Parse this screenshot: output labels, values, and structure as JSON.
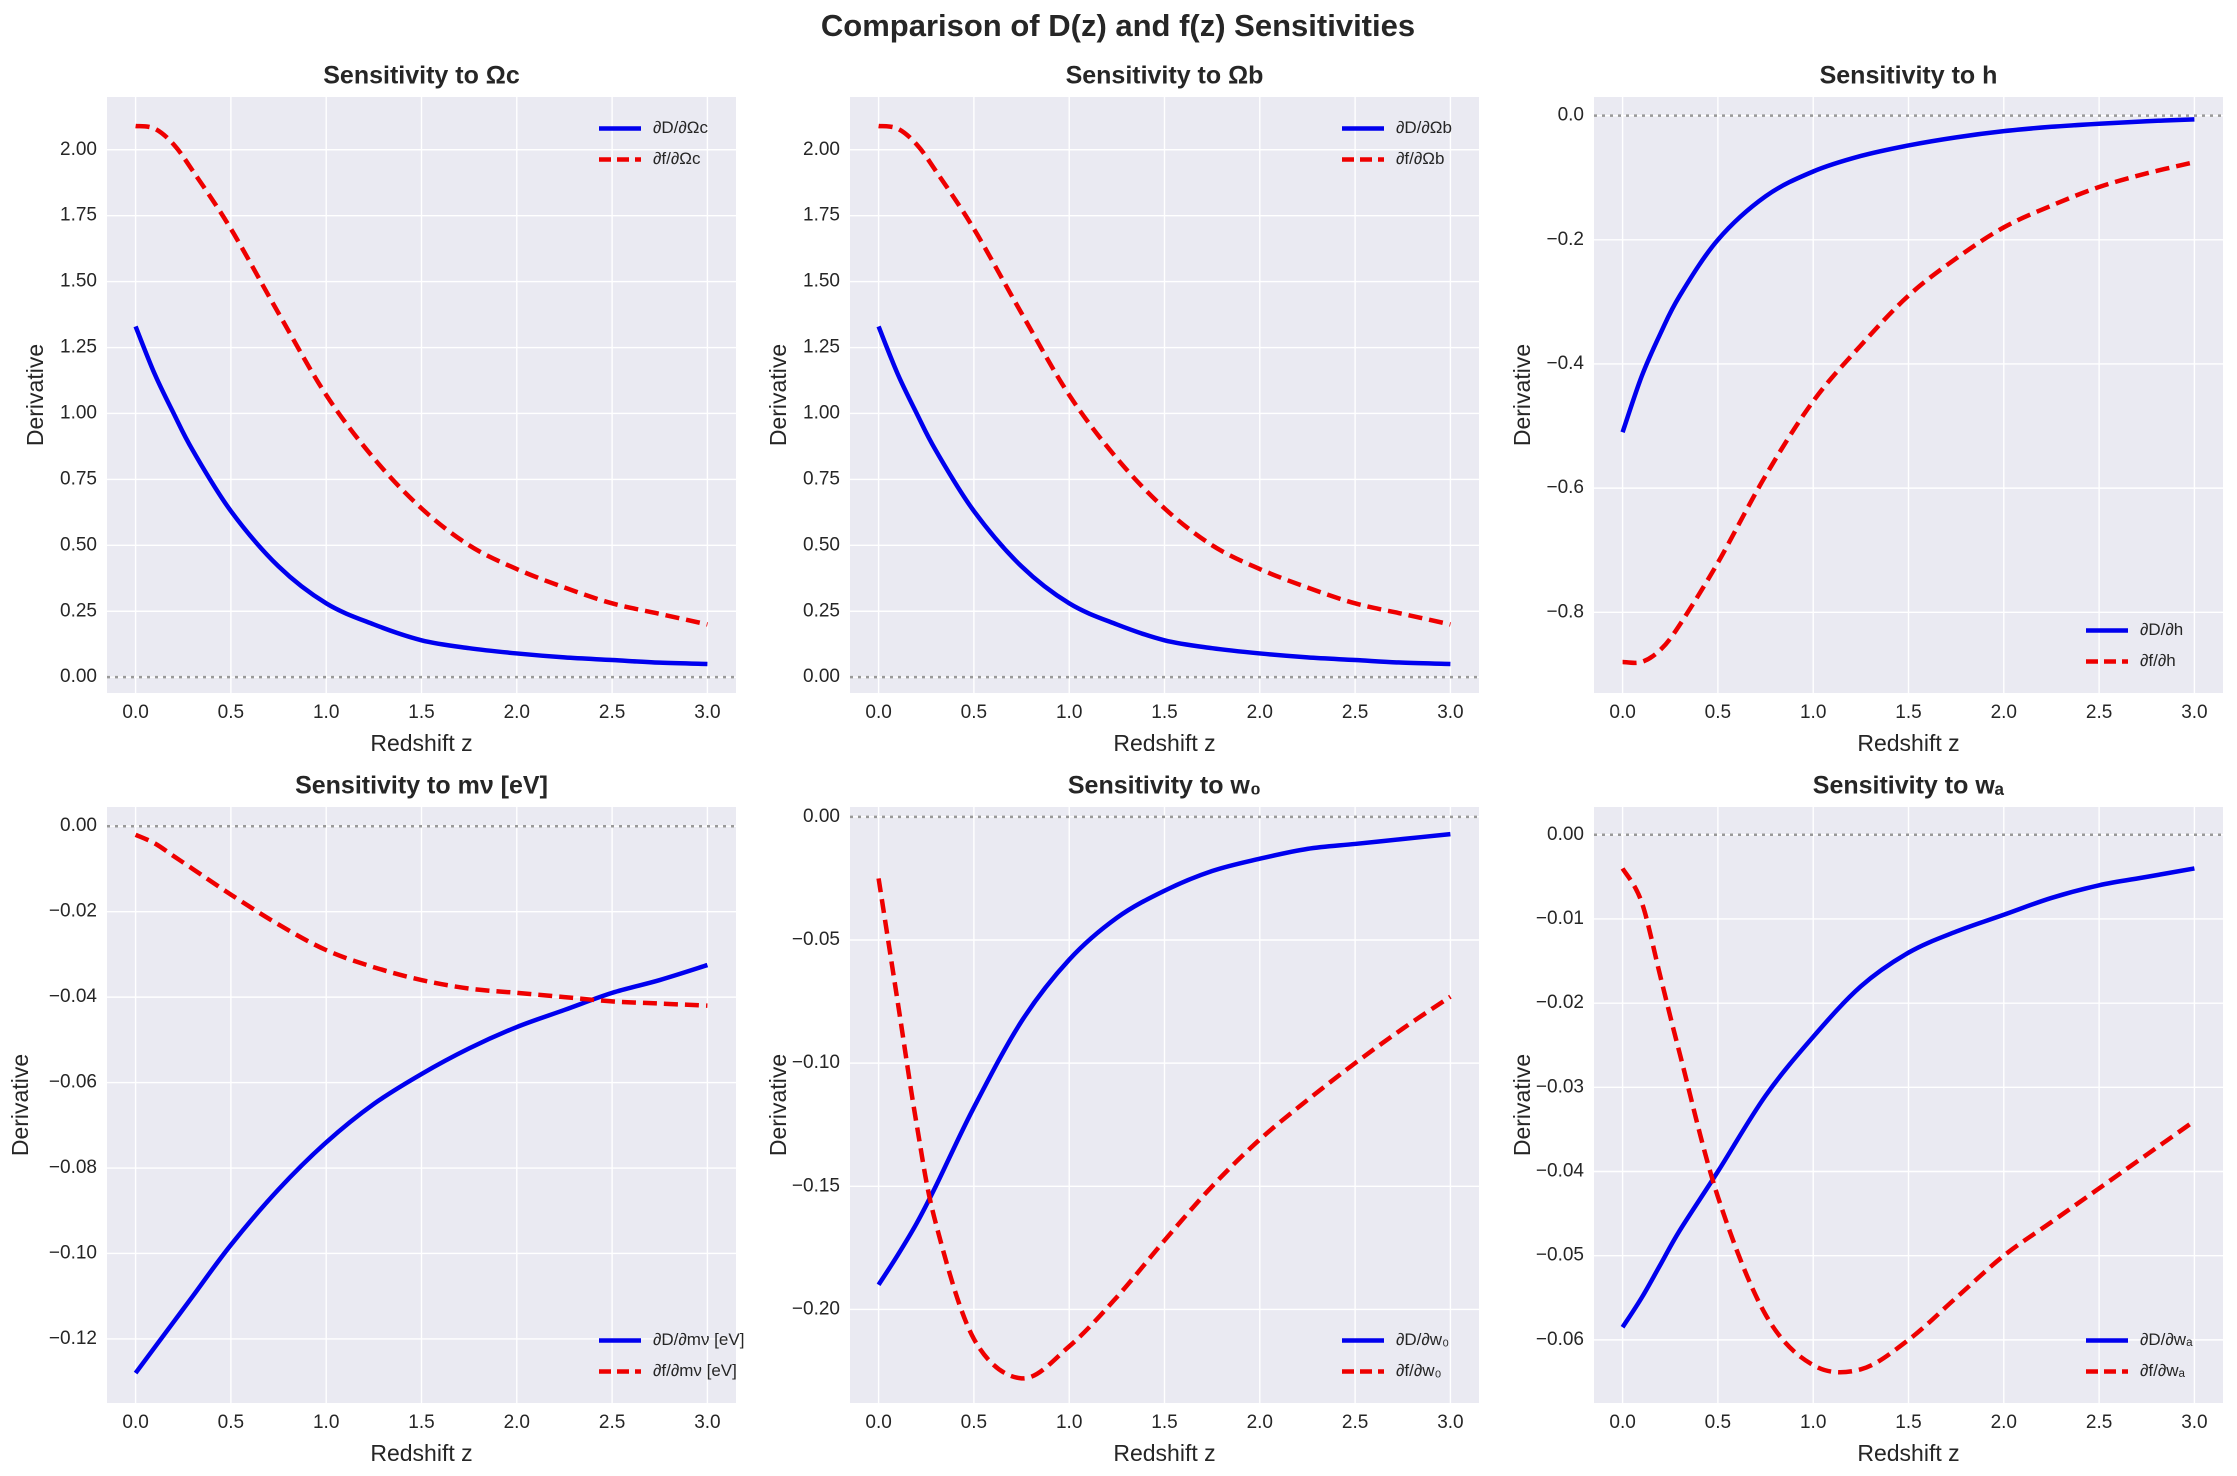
{
  "title": "Comparison of D(z) and f(z) Sensitivities",
  "chart_data": [
    {
      "type": "line",
      "title": "Sensitivity to Ωc",
      "xlabel": "Redshift z",
      "ylabel": "Derivative",
      "legend": "upper right",
      "grid": true,
      "hline": 0,
      "x": [
        0,
        0.1,
        0.2,
        0.3,
        0.5,
        0.75,
        1.0,
        1.25,
        1.5,
        1.75,
        2.0,
        2.25,
        2.5,
        2.75,
        3.0
      ],
      "series": [
        {
          "name": "∂D/∂Ωc",
          "color": "#0000ee",
          "linestyle": "solid",
          "values": [
            1.33,
            1.15,
            1.0,
            0.86,
            0.63,
            0.42,
            0.28,
            0.2,
            0.14,
            0.11,
            0.09,
            0.075,
            0.065,
            0.055,
            0.05
          ]
        },
        {
          "name": "∂f/∂Ωc",
          "color": "#ee0000",
          "linestyle": "dashed",
          "values": [
            2.09,
            2.08,
            2.02,
            1.92,
            1.7,
            1.38,
            1.07,
            0.83,
            0.64,
            0.5,
            0.41,
            0.34,
            0.28,
            0.24,
            0.2
          ]
        }
      ],
      "xlim": [
        -0.15,
        3.15
      ],
      "ylim": [
        -0.06,
        2.2
      ],
      "xticks": [
        {
          "value": 0,
          "label": "0.0"
        },
        0.5,
        {
          "value": 1,
          "label": "1.0"
        },
        1.5,
        {
          "value": 2,
          "label": "2.0"
        },
        2.5,
        {
          "value": 3,
          "label": "3.0"
        }
      ],
      "yticks": [
        {
          "value": 0,
          "label": "0.00"
        },
        0.25,
        {
          "value": 0.5,
          "label": "0.50"
        },
        0.75,
        {
          "value": 1,
          "label": "1.00"
        },
        1.25,
        {
          "value": 1.5,
          "label": "1.50"
        },
        1.75,
        {
          "value": 2,
          "label": "2.00"
        }
      ]
    },
    {
      "type": "line",
      "title": "Sensitivity to Ωb",
      "xlabel": "Redshift z",
      "ylabel": "Derivative",
      "legend": "upper right",
      "grid": true,
      "hline": 0,
      "x": [
        0,
        0.1,
        0.2,
        0.3,
        0.5,
        0.75,
        1.0,
        1.25,
        1.5,
        1.75,
        2.0,
        2.25,
        2.5,
        2.75,
        3.0
      ],
      "series": [
        {
          "name": "∂D/∂Ωb",
          "color": "#0000ee",
          "linestyle": "solid",
          "values": [
            1.33,
            1.15,
            1.0,
            0.86,
            0.63,
            0.42,
            0.28,
            0.2,
            0.14,
            0.11,
            0.09,
            0.075,
            0.065,
            0.055,
            0.05
          ]
        },
        {
          "name": "∂f/∂Ωb",
          "color": "#ee0000",
          "linestyle": "dashed",
          "values": [
            2.09,
            2.08,
            2.02,
            1.92,
            1.7,
            1.38,
            1.07,
            0.83,
            0.64,
            0.5,
            0.41,
            0.34,
            0.28,
            0.24,
            0.2
          ]
        }
      ],
      "xlim": [
        -0.15,
        3.15
      ],
      "ylim": [
        -0.06,
        2.2
      ],
      "xticks": [
        {
          "value": 0,
          "label": "0.0"
        },
        0.5,
        {
          "value": 1,
          "label": "1.0"
        },
        1.5,
        {
          "value": 2,
          "label": "2.0"
        },
        2.5,
        {
          "value": 3,
          "label": "3.0"
        }
      ],
      "yticks": [
        {
          "value": 0,
          "label": "0.00"
        },
        0.25,
        {
          "value": 0.5,
          "label": "0.50"
        },
        0.75,
        {
          "value": 1,
          "label": "1.00"
        },
        1.25,
        {
          "value": 1.5,
          "label": "1.50"
        },
        1.75,
        {
          "value": 2,
          "label": "2.00"
        }
      ]
    },
    {
      "type": "line",
      "title": "Sensitivity to h",
      "xlabel": "Redshift z",
      "ylabel": "Derivative",
      "legend": "lower right",
      "grid": true,
      "hline": 0,
      "x": [
        0,
        0.1,
        0.2,
        0.3,
        0.5,
        0.75,
        1.0,
        1.25,
        1.5,
        1.75,
        2.0,
        2.25,
        2.5,
        2.75,
        3.0
      ],
      "series": [
        {
          "name": "∂D/∂h",
          "color": "#0000ee",
          "linestyle": "solid",
          "values": [
            -0.51,
            -0.42,
            -0.35,
            -0.29,
            -0.2,
            -0.13,
            -0.09,
            -0.065,
            -0.048,
            -0.035,
            -0.025,
            -0.018,
            -0.013,
            -0.009,
            -0.006
          ]
        },
        {
          "name": "∂f/∂h",
          "color": "#ee0000",
          "linestyle": "dashed",
          "values": [
            -0.88,
            -0.88,
            -0.86,
            -0.82,
            -0.72,
            -0.58,
            -0.46,
            -0.37,
            -0.29,
            -0.23,
            -0.18,
            -0.145,
            -0.115,
            -0.093,
            -0.075
          ]
        }
      ],
      "xlim": [
        -0.15,
        3.15
      ],
      "ylim": [
        -0.93,
        0.03
      ],
      "xticks": [
        {
          "value": 0,
          "label": "0.0"
        },
        0.5,
        {
          "value": 1,
          "label": "1.0"
        },
        1.5,
        {
          "value": 2,
          "label": "2.0"
        },
        2.5,
        {
          "value": 3,
          "label": "3.0"
        }
      ],
      "yticks": [
        {
          "value": 0,
          "label": "0.0"
        },
        {
          "value": -0.2,
          "label": "−0.2"
        },
        {
          "value": -0.4,
          "label": "−0.4"
        },
        {
          "value": -0.6,
          "label": "−0.6"
        },
        {
          "value": -0.8,
          "label": "−0.8"
        }
      ]
    },
    {
      "type": "line",
      "title": "Sensitivity to mν [eV]",
      "xlabel": "Redshift z",
      "ylabel": "Derivative",
      "legend": "lower right",
      "grid": true,
      "hline": 0,
      "x": [
        0,
        0.1,
        0.2,
        0.3,
        0.5,
        0.75,
        1.0,
        1.25,
        1.5,
        1.75,
        2.0,
        2.25,
        2.5,
        2.75,
        3.0
      ],
      "series": [
        {
          "name": "∂D/∂mν [eV]",
          "color": "#0000ee",
          "linestyle": "solid",
          "values": [
            -0.128,
            -0.122,
            -0.116,
            -0.11,
            -0.098,
            -0.085,
            -0.074,
            -0.065,
            -0.058,
            -0.052,
            -0.047,
            -0.043,
            -0.039,
            -0.036,
            -0.0325
          ]
        },
        {
          "name": "∂f/∂mν [eV]",
          "color": "#ee0000",
          "linestyle": "dashed",
          "values": [
            -0.002,
            -0.004,
            -0.007,
            -0.01,
            -0.016,
            -0.023,
            -0.029,
            -0.033,
            -0.036,
            -0.038,
            -0.039,
            -0.04,
            -0.041,
            -0.0415,
            -0.042
          ]
        }
      ],
      "xlim": [
        -0.15,
        3.15
      ],
      "ylim": [
        -0.135,
        0.0045
      ],
      "xticks": [
        {
          "value": 0,
          "label": "0.0"
        },
        0.5,
        {
          "value": 1,
          "label": "1.0"
        },
        1.5,
        {
          "value": 2,
          "label": "2.0"
        },
        2.5,
        {
          "value": 3,
          "label": "3.0"
        }
      ],
      "yticks": [
        {
          "value": 0,
          "label": "0.00"
        },
        {
          "value": -0.02,
          "label": "−0.02"
        },
        {
          "value": -0.04,
          "label": "−0.04"
        },
        {
          "value": -0.06,
          "label": "−0.06"
        },
        {
          "value": -0.08,
          "label": "−0.08"
        },
        {
          "value": -0.1,
          "label": "−0.10"
        },
        {
          "value": -0.12,
          "label": "−0.12"
        }
      ]
    },
    {
      "type": "line",
      "title": "Sensitivity to w₀",
      "xlabel": "Redshift z",
      "ylabel": "Derivative",
      "legend": "lower right",
      "grid": true,
      "hline": 0,
      "x": [
        0,
        0.1,
        0.2,
        0.3,
        0.5,
        0.75,
        1.0,
        1.25,
        1.5,
        1.75,
        2.0,
        2.25,
        2.5,
        2.75,
        3.0
      ],
      "series": [
        {
          "name": "∂D/∂w₀",
          "color": "#0000ee",
          "linestyle": "solid",
          "values": [
            -0.19,
            -0.178,
            -0.165,
            -0.15,
            -0.118,
            -0.083,
            -0.058,
            -0.041,
            -0.03,
            -0.022,
            -0.017,
            -0.013,
            -0.011,
            -0.009,
            -0.007
          ]
        },
        {
          "name": "∂f/∂w₀",
          "color": "#ee0000",
          "linestyle": "dashed",
          "values": [
            -0.025,
            -0.075,
            -0.125,
            -0.165,
            -0.212,
            -0.228,
            -0.215,
            -0.195,
            -0.172,
            -0.15,
            -0.131,
            -0.115,
            -0.1,
            -0.086,
            -0.073
          ]
        }
      ],
      "xlim": [
        -0.15,
        3.15
      ],
      "ylim": [
        -0.238,
        0.004
      ],
      "xticks": [
        {
          "value": 0,
          "label": "0.0"
        },
        0.5,
        {
          "value": 1,
          "label": "1.0"
        },
        1.5,
        {
          "value": 2,
          "label": "2.0"
        },
        2.5,
        {
          "value": 3,
          "label": "3.0"
        }
      ],
      "yticks": [
        {
          "value": 0,
          "label": "0.00"
        },
        {
          "value": -0.05,
          "label": "−0.05"
        },
        {
          "value": -0.1,
          "label": "−0.10"
        },
        {
          "value": -0.15,
          "label": "−0.15"
        },
        {
          "value": -0.2,
          "label": "−0.20"
        }
      ]
    },
    {
      "type": "line",
      "title": "Sensitivity to wₐ",
      "xlabel": "Redshift z",
      "ylabel": "Derivative",
      "legend": "lower right",
      "grid": true,
      "hline": 0,
      "x": [
        0,
        0.1,
        0.2,
        0.3,
        0.5,
        0.75,
        1.0,
        1.25,
        1.5,
        1.75,
        2.0,
        2.25,
        2.5,
        2.75,
        3.0
      ],
      "series": [
        {
          "name": "∂D/∂wₐ",
          "color": "#0000ee",
          "linestyle": "solid",
          "values": [
            -0.0585,
            -0.055,
            -0.051,
            -0.047,
            -0.04,
            -0.031,
            -0.024,
            -0.018,
            -0.014,
            -0.0115,
            -0.0095,
            -0.0075,
            -0.006,
            -0.005,
            -0.004
          ]
        },
        {
          "name": "∂f/∂wₐ",
          "color": "#ee0000",
          "linestyle": "dashed",
          "values": [
            -0.004,
            -0.008,
            -0.017,
            -0.026,
            -0.043,
            -0.057,
            -0.063,
            -0.0635,
            -0.06,
            -0.055,
            -0.05,
            -0.046,
            -0.042,
            -0.038,
            -0.034
          ]
        }
      ],
      "xlim": [
        -0.15,
        3.15
      ],
      "ylim": [
        -0.0675,
        0.0033
      ],
      "xticks": [
        {
          "value": 0,
          "label": "0.0"
        },
        0.5,
        {
          "value": 1,
          "label": "1.0"
        },
        1.5,
        {
          "value": 2,
          "label": "2.0"
        },
        2.5,
        {
          "value": 3,
          "label": "3.0"
        }
      ],
      "yticks": [
        {
          "value": 0,
          "label": "0.00"
        },
        {
          "value": -0.01,
          "label": "−0.01"
        },
        {
          "value": -0.02,
          "label": "−0.02"
        },
        {
          "value": -0.03,
          "label": "−0.03"
        },
        {
          "value": -0.04,
          "label": "−0.04"
        },
        {
          "value": -0.05,
          "label": "−0.05"
        },
        {
          "value": -0.06,
          "label": "−0.06"
        }
      ]
    }
  ]
}
